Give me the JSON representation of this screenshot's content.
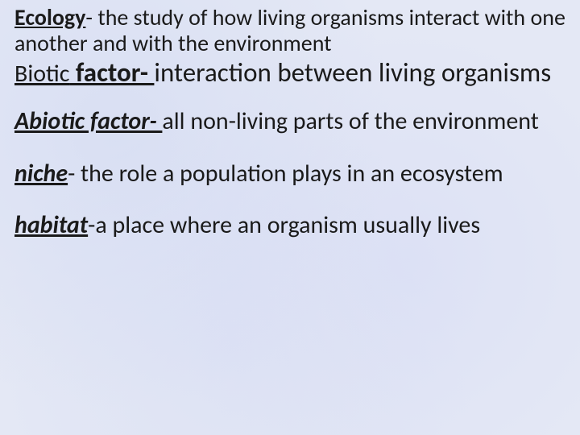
{
  "background_color": "#e4e8f5",
  "text_color": "#1a1a1a",
  "definitions": {
    "ecology": {
      "term": "Ecology",
      "body": "- the study of how living organisms interact with one another and with the environment",
      "fontsize": 28
    },
    "biotic": {
      "term_part1": "Biotic",
      "term_part2": " factor- ",
      "body": "interaction between living organisms",
      "fontsize": 33
    },
    "abiotic": {
      "term": "Abiotic factor- ",
      "body": "all non-living parts of the environment",
      "fontsize": 30
    },
    "niche": {
      "term": "niche",
      "body": "- the role a population plays in an ecosystem",
      "fontsize": 30
    },
    "habitat": {
      "term": "habitat",
      "body": "-a place where an organism usually lives",
      "fontsize": 30
    }
  }
}
